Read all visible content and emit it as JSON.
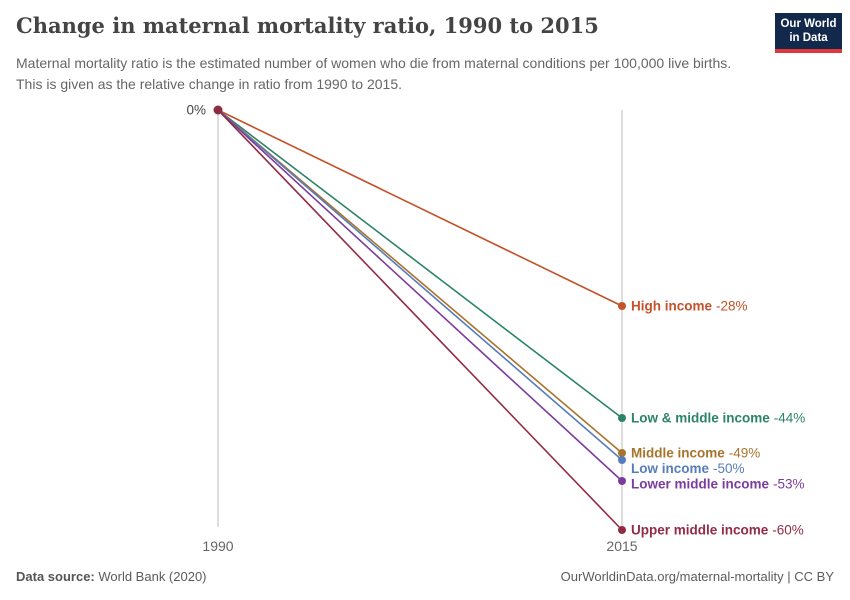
{
  "header": {
    "title": "Change in maternal mortality ratio, 1990 to 2015",
    "subtitle": "Maternal mortality ratio is the estimated number of women who die from maternal conditions per 100,000 live births. This is given as the relative change in ratio from 1990 to 2015."
  },
  "logo": {
    "line1": "Our World",
    "line2": "in Data",
    "bg_color": "#12294b",
    "accent_color": "#e0373c"
  },
  "chart_data": {
    "type": "line",
    "variant": "slope",
    "title": "Change in maternal mortality ratio, 1990 to 2015",
    "x": [
      1990,
      2015
    ],
    "x_tick_labels": [
      "1990",
      "2015"
    ],
    "ylim": [
      -60,
      0
    ],
    "start_label": "0%",
    "grid": false,
    "legend_position": "right-labels",
    "axis_color": "#c8c8c8",
    "origin_dot_color": "#8b2e44",
    "series": [
      {
        "name": "High income",
        "values": [
          0,
          -28
        ],
        "value_label": "-28%",
        "color": "#c4522a"
      },
      {
        "name": "Low & middle income",
        "values": [
          0,
          -44
        ],
        "value_label": "-44%",
        "color": "#2c8465"
      },
      {
        "name": "Middle income",
        "values": [
          0,
          -49
        ],
        "value_label": "-49%",
        "color": "#a9732c"
      },
      {
        "name": "Low income",
        "values": [
          0,
          -50
        ],
        "value_label": "-50%",
        "color": "#577cbb"
      },
      {
        "name": "Lower middle income",
        "values": [
          0,
          -53
        ],
        "value_label": "-53%",
        "color": "#7d3c9d"
      },
      {
        "name": "Upper middle income",
        "values": [
          0,
          -60
        ],
        "value_label": "-60%",
        "color": "#932b45"
      }
    ]
  },
  "footer": {
    "source_label": "Data source:",
    "source_value": " World Bank (2020)",
    "credit": "OurWorldinData.org/maternal-mortality | CC BY"
  }
}
